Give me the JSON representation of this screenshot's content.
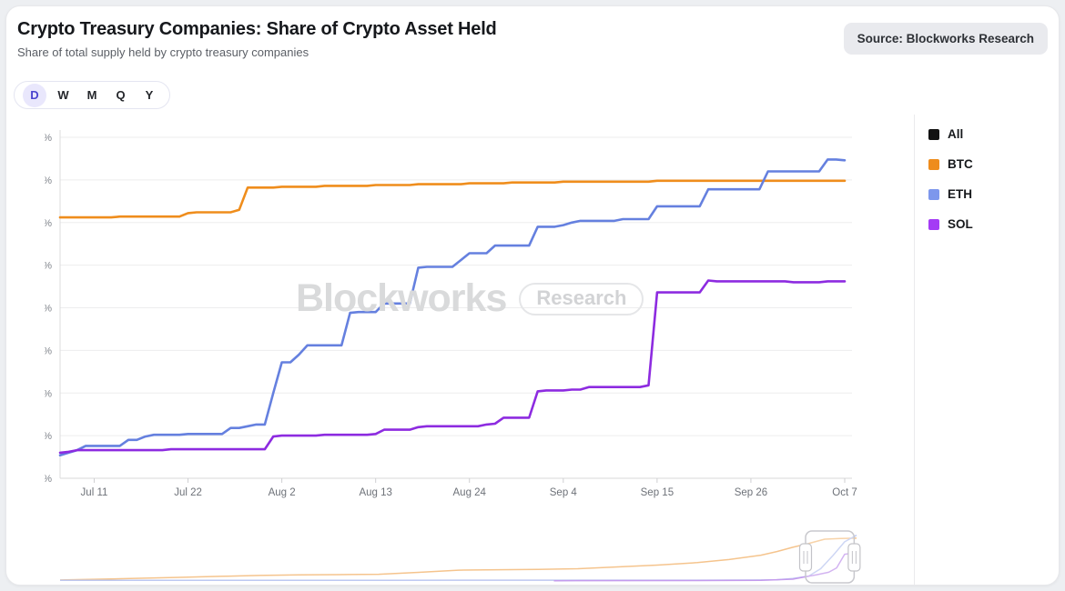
{
  "header": {
    "title": "Crypto Treasury Companies: Share of Crypto Asset Held",
    "subtitle": "Share of total supply held by crypto treasury companies",
    "source_badge": "Source: Blockworks Research"
  },
  "toolbar": {
    "periods": [
      "D",
      "W",
      "M",
      "Q",
      "Y"
    ],
    "selected": "D"
  },
  "watermark": {
    "brand": "Blockworks",
    "tag": "Research"
  },
  "legend": {
    "items": [
      {
        "label": "All",
        "color": "#111111"
      },
      {
        "label": "BTC",
        "color": "#ee8c1c"
      },
      {
        "label": "ETH",
        "color": "#7d97ec"
      },
      {
        "label": "SOL",
        "color": "#a43bf5"
      }
    ]
  },
  "chart_data": {
    "type": "line",
    "title": "Crypto Treasury Companies: Share of Crypto Asset Held",
    "xlabel": "",
    "ylabel": "",
    "ylim": [
      0,
      4
    ],
    "grid": true,
    "legend_position": "right",
    "y_ticks": [
      {
        "label": "0%",
        "value": 0
      },
      {
        "label": "0.5%",
        "value": 0.5
      },
      {
        "label": "1%",
        "value": 1
      },
      {
        "label": "1.5%",
        "value": 1.5
      },
      {
        "label": "2%",
        "value": 2
      },
      {
        "label": "2.5%",
        "value": 2.5
      },
      {
        "label": "3%",
        "value": 3
      },
      {
        "label": "3.5%",
        "value": 3.5
      },
      {
        "label": "4%",
        "value": 4
      }
    ],
    "x_ticks": [
      {
        "label": "Jul 11",
        "index": 4
      },
      {
        "label": "Jul 22",
        "index": 15
      },
      {
        "label": "Aug 2",
        "index": 26
      },
      {
        "label": "Aug 13",
        "index": 37
      },
      {
        "label": "Aug 24",
        "index": 48
      },
      {
        "label": "Sep 4",
        "index": 59
      },
      {
        "label": "Sep 15",
        "index": 70
      },
      {
        "label": "Sep 26",
        "index": 81
      },
      {
        "label": "Oct 7",
        "index": 92
      }
    ],
    "series": [
      {
        "name": "BTC",
        "color": "#ef8d1c",
        "values": [
          3.06,
          3.06,
          3.06,
          3.06,
          3.06,
          3.06,
          3.06,
          3.07,
          3.07,
          3.07,
          3.07,
          3.07,
          3.07,
          3.07,
          3.07,
          3.11,
          3.12,
          3.12,
          3.12,
          3.12,
          3.12,
          3.15,
          3.41,
          3.41,
          3.41,
          3.41,
          3.42,
          3.42,
          3.42,
          3.42,
          3.42,
          3.43,
          3.43,
          3.43,
          3.43,
          3.43,
          3.43,
          3.44,
          3.44,
          3.44,
          3.44,
          3.44,
          3.45,
          3.45,
          3.45,
          3.45,
          3.45,
          3.45,
          3.46,
          3.46,
          3.46,
          3.46,
          3.46,
          3.47,
          3.47,
          3.47,
          3.47,
          3.47,
          3.47,
          3.48,
          3.48,
          3.48,
          3.48,
          3.48,
          3.48,
          3.48,
          3.48,
          3.48,
          3.48,
          3.48,
          3.49,
          3.49,
          3.49,
          3.49,
          3.49,
          3.49,
          3.49,
          3.49,
          3.49,
          3.49,
          3.49,
          3.49,
          3.49,
          3.49,
          3.49,
          3.49,
          3.49,
          3.49,
          3.49,
          3.49,
          3.49,
          3.49,
          3.49
        ]
      },
      {
        "name": "ETH",
        "color": "#6580df",
        "values": [
          0.27,
          0.3,
          0.33,
          0.38,
          0.38,
          0.38,
          0.38,
          0.38,
          0.45,
          0.45,
          0.49,
          0.51,
          0.51,
          0.51,
          0.51,
          0.52,
          0.52,
          0.52,
          0.52,
          0.52,
          0.59,
          0.59,
          0.61,
          0.63,
          0.63,
          1.0,
          1.36,
          1.36,
          1.45,
          1.56,
          1.56,
          1.56,
          1.56,
          1.56,
          1.94,
          1.95,
          1.95,
          1.95,
          2.05,
          2.05,
          2.05,
          2.05,
          2.47,
          2.48,
          2.48,
          2.48,
          2.48,
          2.56,
          2.64,
          2.64,
          2.64,
          2.73,
          2.73,
          2.73,
          2.73,
          2.73,
          2.95,
          2.95,
          2.95,
          2.97,
          3.0,
          3.02,
          3.02,
          3.02,
          3.02,
          3.02,
          3.04,
          3.04,
          3.04,
          3.04,
          3.19,
          3.19,
          3.19,
          3.19,
          3.19,
          3.19,
          3.39,
          3.39,
          3.39,
          3.39,
          3.39,
          3.39,
          3.39,
          3.6,
          3.6,
          3.6,
          3.6,
          3.6,
          3.6,
          3.6,
          3.74,
          3.74,
          3.73
        ]
      },
      {
        "name": "SOL",
        "color": "#8d2be0",
        "values": [
          0.3,
          0.31,
          0.33,
          0.33,
          0.33,
          0.33,
          0.33,
          0.33,
          0.33,
          0.33,
          0.33,
          0.33,
          0.33,
          0.34,
          0.34,
          0.34,
          0.34,
          0.34,
          0.34,
          0.34,
          0.34,
          0.34,
          0.34,
          0.34,
          0.34,
          0.49,
          0.5,
          0.5,
          0.5,
          0.5,
          0.5,
          0.51,
          0.51,
          0.51,
          0.51,
          0.51,
          0.51,
          0.52,
          0.57,
          0.57,
          0.57,
          0.57,
          0.6,
          0.61,
          0.61,
          0.61,
          0.61,
          0.61,
          0.61,
          0.61,
          0.63,
          0.64,
          0.71,
          0.71,
          0.71,
          0.71,
          1.02,
          1.03,
          1.03,
          1.03,
          1.04,
          1.04,
          1.07,
          1.07,
          1.07,
          1.07,
          1.07,
          1.07,
          1.07,
          1.09,
          2.18,
          2.18,
          2.18,
          2.18,
          2.18,
          2.18,
          2.32,
          2.31,
          2.31,
          2.31,
          2.31,
          2.31,
          2.31,
          2.31,
          2.31,
          2.31,
          2.3,
          2.3,
          2.3,
          2.3,
          2.31,
          2.31,
          2.31
        ]
      }
    ]
  },
  "navigator": {
    "window": [
      0.936,
      0.997
    ],
    "series": [
      {
        "name": "BTC",
        "color": "#f5c48d",
        "x": [
          0,
          0.05,
          0.1,
          0.15,
          0.2,
          0.25,
          0.3,
          0.35,
          0.4,
          0.45,
          0.5,
          0.55,
          0.6,
          0.65,
          0.7,
          0.75,
          0.8,
          0.84,
          0.88,
          0.9,
          0.92,
          0.94,
          0.96,
          0.98,
          1.0
        ],
        "values": [
          0.08,
          0.15,
          0.22,
          0.3,
          0.38,
          0.45,
          0.5,
          0.52,
          0.55,
          0.7,
          0.88,
          0.92,
          0.95,
          1.0,
          1.15,
          1.3,
          1.5,
          1.75,
          2.1,
          2.4,
          2.75,
          3.06,
          3.41,
          3.47,
          3.49
        ]
      },
      {
        "name": "ETH",
        "color": "#bdc8f1",
        "x": [
          0,
          0.4,
          0.8,
          0.88,
          0.9,
          0.92,
          0.94,
          0.955,
          0.97,
          0.985,
          1.0
        ],
        "values": [
          0.05,
          0.06,
          0.07,
          0.08,
          0.1,
          0.2,
          0.4,
          1.0,
          2.05,
          3.19,
          3.73
        ]
      },
      {
        "name": "SOL",
        "color": "#c49bed",
        "x": [
          0.62,
          0.8,
          0.88,
          0.92,
          0.935,
          0.95,
          0.965,
          0.975,
          0.985,
          1.0
        ],
        "values": [
          0.02,
          0.04,
          0.06,
          0.15,
          0.33,
          0.51,
          0.71,
          1.07,
          2.18,
          2.31
        ]
      }
    ]
  }
}
